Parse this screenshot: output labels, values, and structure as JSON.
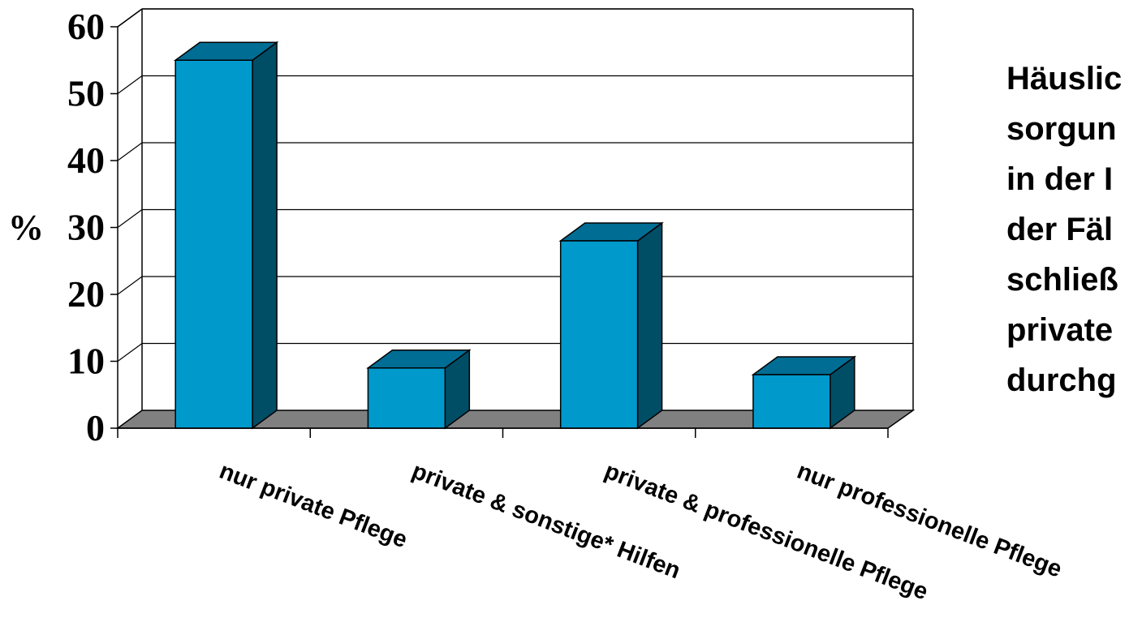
{
  "chart_data": {
    "type": "bar",
    "categories": [
      "nur private Pflege",
      "private & sonstige* Hilfen",
      "private & professionelle Pflege",
      "nur professionelle Pflege"
    ],
    "values": [
      55,
      9,
      28,
      8
    ],
    "ylabel": "%",
    "ylim": [
      0,
      60
    ],
    "yticks": [
      0,
      10,
      20,
      30,
      40,
      50,
      60
    ],
    "grid": true,
    "legend": "none",
    "colors": {
      "bar_front": "#0099cc",
      "bar_top": "#006d94",
      "bar_side": "#004d66",
      "floor": "#808080"
    }
  },
  "side_text": {
    "lines": [
      "Häuslic",
      "sorgun",
      "in der I",
      "der Fäl",
      "schließ",
      "private",
      "durchg"
    ]
  }
}
